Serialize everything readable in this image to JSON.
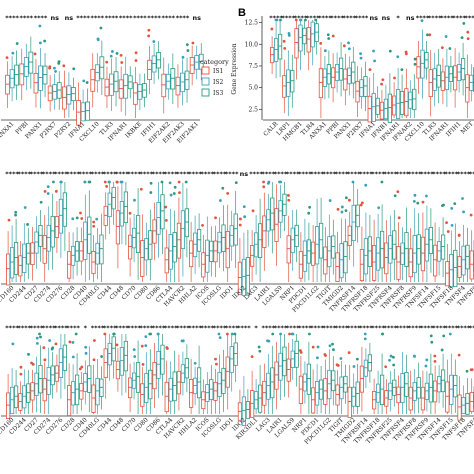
{
  "colors": {
    "IS1": "#e5533d",
    "IS2": "#3aa0b8",
    "IS3": "#2a9a7e",
    "axis": "#333333"
  },
  "legend": {
    "title": "category",
    "items": [
      "IS1",
      "IS2",
      "IS3"
    ]
  },
  "panels": [
    {
      "id": "A-partial",
      "letter": "",
      "region": "topleft"
    },
    {
      "id": "B",
      "letter": "B",
      "region": "topright"
    },
    {
      "id": "C-partial",
      "letter": "",
      "region": "middle"
    },
    {
      "id": "D-partial",
      "letter": "",
      "region": "bottom"
    }
  ],
  "chart_data": [
    {
      "type": "box",
      "panel": "A",
      "categories": [
        "ANXA1",
        "PPBI",
        "PANX1",
        "P2RX7",
        "P2RY2",
        "IFNA1",
        "CXCL10",
        "TLR3",
        "IFNAR1",
        "IKBKE",
        "IFIH1",
        "EIF2AK2",
        "EIF2AK3",
        "EIF2AK1"
      ],
      "significance": [
        "****",
        "****",
        "****",
        "ns",
        "ns",
        "****",
        "****",
        "****",
        "****",
        "****",
        "****",
        "****",
        "****",
        "ns"
      ],
      "series": [
        {
          "name": "IS1",
          "medians": [
            4.6,
            6.0,
            4.8,
            3.4,
            2.8,
            0.8,
            5.2,
            4.2,
            4.0,
            3.4,
            6.6,
            4.5,
            4.4,
            7.2
          ]
        },
        {
          "name": "IS2",
          "medians": [
            5.4,
            7.0,
            5.5,
            3.6,
            3.2,
            0.9,
            6.2,
            4.6,
            4.4,
            3.6,
            7.4,
            5.0,
            4.9,
            7.6
          ]
        },
        {
          "name": "IS3",
          "medians": [
            5.9,
            7.6,
            5.9,
            3.8,
            3.3,
            1.0,
            6.9,
            5.0,
            4.9,
            3.8,
            7.9,
            5.4,
            5.2,
            7.7
          ]
        }
      ],
      "ylim": [
        0,
        12.5
      ]
    },
    {
      "type": "box",
      "panel": "B",
      "categories": [
        "CALR",
        "LRP1",
        "HMGB1",
        "TLR4",
        "ANXA1",
        "PPBI",
        "PANX1",
        "P2RX7",
        "IFNA1",
        "IFNB1",
        "IFNAR1",
        "IFNAR2",
        "CXCL10",
        "TLR3",
        "IFNAR1",
        "IFIH1",
        "MET"
      ],
      "significance": [
        "****",
        "****",
        "****",
        "****",
        "****",
        "****",
        "****",
        "****",
        "ns",
        "ns",
        "*",
        "ns",
        "****",
        "****",
        "****",
        "****",
        "****"
      ],
      "ylabel": "Gene Expression",
      "yticks": [
        "2.5",
        "5.0",
        "7.5",
        "10.0",
        "12.5"
      ],
      "series": [
        {
          "name": "IS1",
          "medians": [
            8.8,
            5.2,
            10.2,
            10.6,
            5.6,
            6.2,
            6.0,
            4.6,
            2.6,
            2.4,
            3.0,
            3.4,
            7.4,
            5.6,
            5.8,
            6.2,
            5.0
          ]
        },
        {
          "name": "IS2",
          "medians": [
            9.4,
            5.6,
            10.8,
            11.2,
            6.2,
            6.8,
            6.4,
            5.0,
            2.8,
            2.6,
            3.2,
            3.6,
            7.8,
            6.0,
            6.2,
            6.8,
            5.6
          ]
        },
        {
          "name": "IS3",
          "medians": [
            9.8,
            5.8,
            11.0,
            11.4,
            6.6,
            7.2,
            6.8,
            5.2,
            2.9,
            2.7,
            3.3,
            3.7,
            8.2,
            6.4,
            6.6,
            7.2,
            6.0
          ]
        }
      ],
      "ylim": [
        1.5,
        12.8
      ]
    },
    {
      "type": "box",
      "panel": "C",
      "categories": [
        "CD160",
        "CD244",
        "CD27",
        "CD274",
        "CD276",
        "CD28",
        "CD40",
        "CD40LG",
        "CD44",
        "CD48",
        "CD70",
        "CD80",
        "CD86",
        "CTLA4",
        "HAVCR2",
        "HHLA2",
        "ICOS",
        "ICOSLG",
        "IDO1",
        "IDO2",
        "LAG3",
        "LAIR1",
        "LGALS9",
        "NRP1",
        "PDCD1",
        "PDCD1LG2",
        "TIGIT",
        "TMIGD2",
        "TNFRSF14",
        "TNFRSF18",
        "TNFRSF25",
        "TNFRSF4",
        "TNFRSF8",
        "TNFRSF9",
        "TNFSF14",
        "TNFSF15",
        "TNFSF18",
        "TNFSF4",
        "TNFSF9"
      ],
      "significance": [
        "****",
        "****",
        "****",
        "****",
        "****",
        "****",
        "****",
        "****",
        "****",
        "****",
        "****",
        "****",
        "****",
        "****",
        "****",
        "****",
        "****",
        "****",
        "****",
        "ns",
        "****",
        "****",
        "****",
        "****",
        "****",
        "****",
        "****",
        "****",
        "****",
        "****",
        "****",
        "****",
        "****",
        "****",
        "****",
        "****",
        "****",
        "****",
        "****"
      ],
      "series": [
        {
          "name": "IS1",
          "medians": [
            1.2,
            1.5,
            2.6,
            3.0,
            5.0,
            1.6,
            2.8,
            1.8,
            6.0,
            5.0,
            3.2,
            2.2,
            4.6,
            2.0,
            3.8,
            2.6,
            1.6,
            2.8,
            3.0,
            0.4,
            2.4,
            4.6,
            5.2,
            3.0,
            1.6,
            2.6,
            2.0,
            1.4,
            4.2,
            1.6,
            1.8,
            2.2,
            1.8,
            1.8,
            2.6,
            2.0,
            0.8,
            1.4,
            1.6
          ]
        },
        {
          "name": "IS2",
          "medians": [
            1.8,
            2.2,
            3.6,
            4.0,
            6.0,
            2.4,
            3.8,
            2.6,
            7.0,
            6.2,
            4.0,
            3.0,
            5.8,
            2.8,
            4.8,
            3.4,
            2.4,
            3.6,
            4.2,
            0.5,
            3.4,
            5.6,
            6.4,
            3.8,
            2.4,
            3.4,
            2.8,
            2.0,
            5.4,
            2.4,
            2.6,
            3.0,
            2.6,
            2.6,
            3.4,
            2.8,
            1.1,
            2.0,
            2.4
          ]
        },
        {
          "name": "IS3",
          "medians": [
            2.2,
            2.6,
            4.2,
            4.6,
            6.6,
            2.8,
            4.3,
            3.0,
            7.6,
            6.8,
            4.4,
            3.4,
            6.4,
            3.2,
            5.4,
            3.8,
            2.8,
            4.0,
            4.8,
            0.6,
            3.8,
            6.2,
            7.0,
            4.2,
            2.8,
            3.8,
            3.2,
            2.3,
            6.0,
            2.8,
            3.0,
            3.4,
            3.0,
            3.0,
            3.8,
            3.2,
            1.3,
            2.3,
            2.8
          ]
        }
      ]
    },
    {
      "type": "box",
      "panel": "D",
      "categories": [
        "CD160",
        "CD244",
        "CD27",
        "CD274",
        "CD276",
        "CD28",
        "CD40",
        "CD40LG",
        "CD44",
        "CD48",
        "CD70",
        "CD80",
        "CD86",
        "CTLA4",
        "HAVCR2",
        "HHLA2",
        "ICOS",
        "ICOSLG",
        "IDO1",
        "IDO2",
        "KIR3DL1",
        "LAG3",
        "LAIR1",
        "LGALS9",
        "NRP1",
        "PDCD1",
        "PDCD1LG2",
        "TIGIT",
        "TMIGD2",
        "TNFRSF14",
        "TNFRSF18",
        "TNFRSF25",
        "TNFRSF4",
        "TNFRSF8",
        "TNFRSF9",
        "TNFSF14",
        "TNFSF15",
        "TNFSF18",
        "TNFSF4"
      ],
      "significance": [
        "****",
        "****",
        "****",
        "****",
        "****",
        "****",
        "*",
        "****",
        "****",
        "****",
        "****",
        "****",
        "****",
        "****",
        "****",
        "****",
        "****",
        "****",
        "****",
        "****",
        "*",
        "****",
        "****",
        "****",
        "****",
        "****",
        "****",
        "****",
        "****",
        "****",
        "****",
        "****",
        "****",
        "****",
        "****",
        "****",
        "****",
        "****",
        "****"
      ],
      "series": [
        {
          "name": "IS1",
          "medians": [
            1.0,
            1.4,
            2.6,
            2.8,
            4.6,
            1.6,
            2.6,
            1.8,
            5.8,
            5.0,
            3.0,
            2.2,
            4.4,
            2.0,
            3.6,
            2.4,
            1.6,
            2.6,
            4.8,
            0.3,
            1.2,
            2.4,
            4.4,
            5.0,
            2.8,
            1.6,
            2.6,
            2.2,
            1.4,
            4.0,
            1.6,
            1.8,
            2.2,
            1.8,
            1.8,
            2.6,
            2.0,
            0.8,
            1.4
          ]
        },
        {
          "name": "IS2",
          "medians": [
            1.6,
            2.0,
            3.4,
            3.8,
            5.8,
            2.4,
            3.6,
            2.6,
            6.8,
            6.0,
            3.8,
            3.0,
            5.6,
            2.8,
            4.6,
            3.2,
            2.4,
            3.4,
            6.2,
            0.4,
            1.6,
            3.2,
            5.4,
            6.2,
            3.6,
            2.4,
            3.4,
            3.0,
            2.0,
            5.2,
            2.4,
            2.6,
            3.0,
            2.6,
            2.6,
            3.4,
            2.8,
            1.0,
            2.0
          ]
        },
        {
          "name": "IS3",
          "medians": [
            2.0,
            2.4,
            4.0,
            4.4,
            6.4,
            2.8,
            4.0,
            3.0,
            7.4,
            6.6,
            4.2,
            3.4,
            6.2,
            3.2,
            5.2,
            3.6,
            2.8,
            3.8,
            6.8,
            0.5,
            1.8,
            3.6,
            6.0,
            6.8,
            4.0,
            2.8,
            3.8,
            3.4,
            2.3,
            5.8,
            2.8,
            3.0,
            3.4,
            3.0,
            3.0,
            3.8,
            3.2,
            1.2,
            2.3
          ]
        }
      ]
    }
  ]
}
